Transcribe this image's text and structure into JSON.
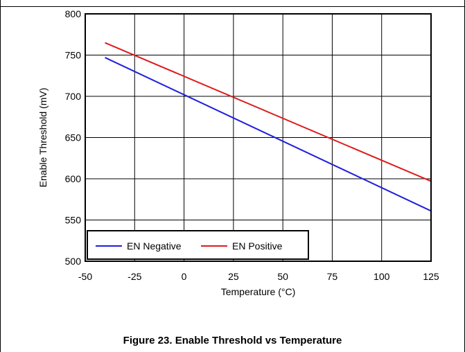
{
  "chart_data": {
    "type": "line",
    "caption": "Figure 23. Enable Threshold vs Temperature",
    "xlabel": "Temperature (°C)",
    "ylabel": "Enable Threshold (mV)",
    "xlim": [
      -50,
      125
    ],
    "ylim": [
      500,
      800
    ],
    "xticks": [
      "-50",
      "-25",
      "0",
      "25",
      "50",
      "75",
      "100",
      "125"
    ],
    "yticks": [
      "500",
      "550",
      "600",
      "650",
      "700",
      "750",
      "800"
    ],
    "grid": true,
    "legend_position": "bottom-left",
    "series": [
      {
        "name": "EN Negative",
        "color": "#1f1fdc",
        "x": [
          -40,
          125
        ],
        "y": [
          747,
          561
        ]
      },
      {
        "name": "EN Positive",
        "color": "#e01a1a",
        "x": [
          -40,
          125
        ],
        "y": [
          765,
          597
        ]
      }
    ]
  }
}
